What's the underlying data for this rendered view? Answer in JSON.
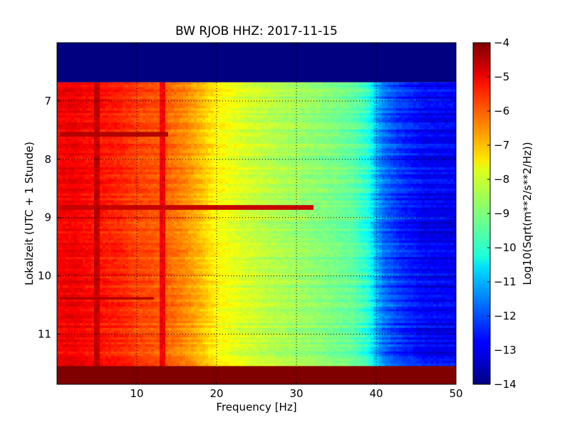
{
  "chart_data": {
    "type": "heatmap",
    "title": "BW RJOB HHZ: 2017-11-15",
    "xlabel": "Frequency [Hz]",
    "ylabel": "Lokalzeit (UTC + 1 Stunde)",
    "xlim": [
      0,
      50
    ],
    "ylim": [
      11.86,
      6.0
    ],
    "x_ticks": [
      10,
      20,
      30,
      40,
      50
    ],
    "y_ticks": [
      7,
      8,
      9,
      10,
      11
    ],
    "grid": true,
    "grid_style": "dotted",
    "colormap": "jet",
    "colorbar": {
      "label": "Log10(Sqrt(m**2/s**2/Hz))",
      "range": [
        -14,
        -4
      ],
      "ticks": [
        -4,
        -5,
        -6,
        -7,
        -8,
        -9,
        -10,
        -11,
        -12,
        -13,
        -14
      ]
    },
    "data_time_range": [
      6.68,
      11.54
    ],
    "fill_before_data": -14,
    "fill_after_data": -4,
    "spectrum_profile": {
      "frequency": [
        0,
        2,
        5,
        8,
        10,
        13,
        16,
        18,
        20,
        23,
        26,
        30,
        34,
        37,
        39,
        40,
        41,
        43,
        46,
        50
      ],
      "log_psd": [
        -5.2,
        -5.1,
        -5.4,
        -5.6,
        -5.9,
        -6.1,
        -6.6,
        -7.1,
        -7.7,
        -8.1,
        -8.4,
        -8.7,
        -9.0,
        -9.3,
        -9.9,
        -11.0,
        -11.7,
        -12.3,
        -12.8,
        -12.9
      ]
    },
    "features": [
      {
        "kind": "horizontal_band",
        "time": 7.57,
        "freq_range": [
          0.5,
          14
        ],
        "log_psd": -4.5
      },
      {
        "kind": "horizontal_band",
        "time": 8.83,
        "freq_range": [
          0.5,
          32
        ],
        "log_psd": -4.7
      },
      {
        "kind": "horizontal_band",
        "time": 10.38,
        "freq_range": [
          0.5,
          12
        ],
        "log_psd": -4.5
      },
      {
        "kind": "vertical_line",
        "freq": 5.0,
        "log_psd": -4.4
      },
      {
        "kind": "vertical_line",
        "freq": 13.2,
        "log_psd": -4.9
      }
    ]
  }
}
